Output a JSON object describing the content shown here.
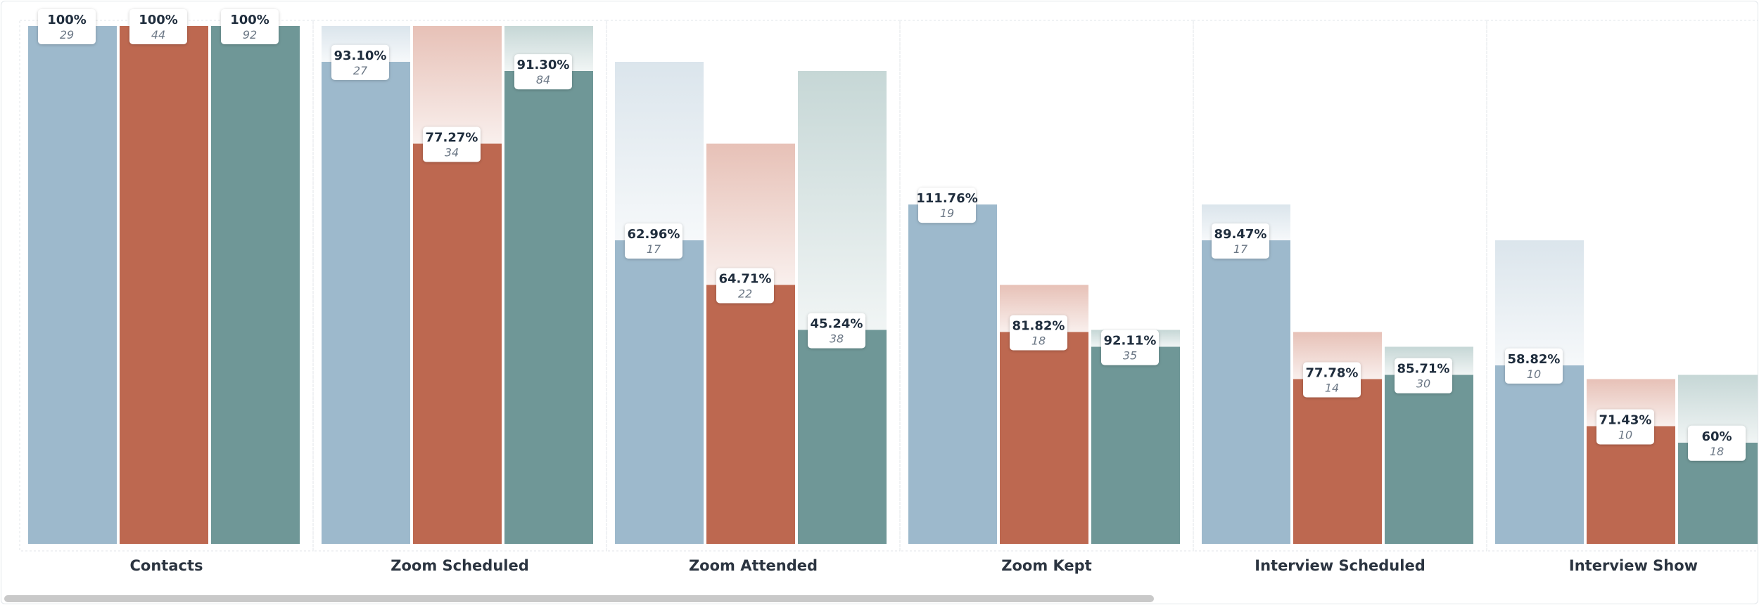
{
  "chart_data": {
    "type": "bar",
    "title": "",
    "xlabel": "",
    "ylabel": "",
    "categories": [
      "Contacts",
      "Zoom Scheduled",
      "Zoom Attended",
      "Zoom Kept",
      "Interview Scheduled",
      "Interview Show"
    ],
    "series": [
      {
        "color": "#9db9cc",
        "ghost_color": "#dbe5ec",
        "counts": [
          29,
          27,
          17,
          19,
          17,
          10
        ],
        "percent_labels": [
          "100%",
          "93.10%",
          "62.96%",
          "111.76%",
          "89.47%",
          "58.82%"
        ]
      },
      {
        "color": "#bd6850",
        "ghost_color": "#e7c1b7",
        "counts": [
          44,
          34,
          22,
          18,
          14,
          10
        ],
        "percent_labels": [
          "100%",
          "77.27%",
          "64.71%",
          "81.82%",
          "77.78%",
          "71.43%"
        ]
      },
      {
        "color": "#6f9797",
        "ghost_color": "#c6d7d6",
        "counts": [
          92,
          84,
          38,
          35,
          30,
          18
        ],
        "percent_labels": [
          "100%",
          "91.30%",
          "45.24%",
          "92.11%",
          "85.71%",
          "60%"
        ]
      }
    ],
    "grid": false,
    "legend": "none"
  }
}
